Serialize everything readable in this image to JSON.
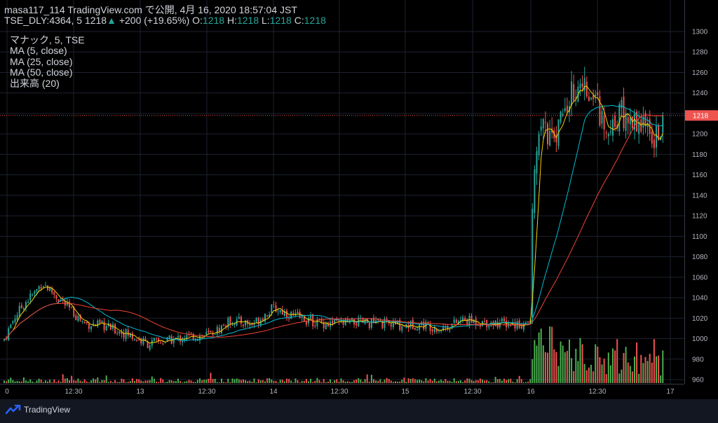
{
  "header": {
    "line1": "masa117_114 TradingView.com で公開, 4月 16, 2020 18:57:04 JST",
    "symbol": "TSE_DLY:4364, 5",
    "last": "1218",
    "change_arrow": "▲",
    "change": "+200 (+19.65%)",
    "o_label": "O:",
    "o": "1218",
    "h_label": "H:",
    "h": "1218",
    "l_label": "L:",
    "l": "1218",
    "c_label": "C:",
    "c": "1218"
  },
  "legend": {
    "title": "マナック, 5, TSE",
    "items": [
      "MA (5, close)",
      "MA (25, close)",
      "MA (50, close)",
      "出来高 (20)"
    ]
  },
  "colors": {
    "up": "#26a69a",
    "down": "#ef5350",
    "vol_up": "#4caf50",
    "vol_down": "#ef5350",
    "ma5": "#f5d000",
    "ma25": "#00bcd4",
    "ma50": "#f44336",
    "price_tag": "#ef5350",
    "grid": "#1e2230"
  },
  "brand": "TradingView",
  "chart_data": {
    "type": "candlestick",
    "y_axis": {
      "range": [
        960,
        1300
      ],
      "ticks": [
        "1300",
        "1280",
        "1260",
        "1240",
        "1220",
        "1200",
        "1180",
        "1160",
        "1140",
        "1120",
        "1100",
        "1080",
        "1060",
        "1040",
        "1020",
        "1000",
        "980",
        "960"
      ]
    },
    "x_axis": {
      "ticks": [
        "0",
        "12:30",
        "13",
        "12:30",
        "14",
        "12:30",
        "15",
        "12:30",
        "16",
        "12:30",
        "17"
      ]
    },
    "last_price": "1218",
    "series": [
      {
        "name": "MA (5, close)"
      },
      {
        "name": "MA (25, close)"
      },
      {
        "name": "MA (50, close)"
      },
      {
        "name": "出来高 (20)"
      }
    ]
  }
}
